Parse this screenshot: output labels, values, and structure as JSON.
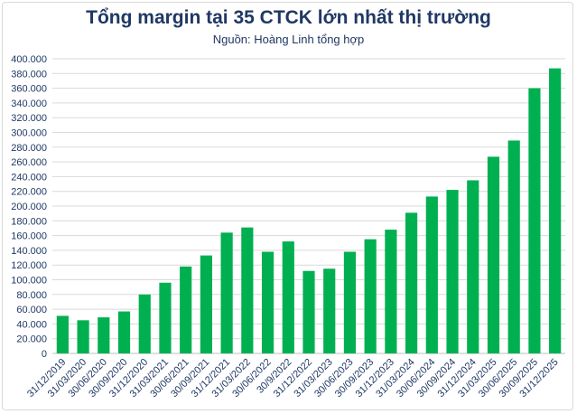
{
  "chart_data": {
    "type": "bar",
    "title": "Tổng margin tại 35 CTCK lớn nhất thị trường",
    "subtitle": "Nguồn: Hoàng Linh tổng hợp",
    "xlabel": "",
    "ylabel": "",
    "ylim": [
      0,
      400000
    ],
    "yticks": [
      "0",
      "20.000",
      "40.000",
      "60.000",
      "80.000",
      "100.000",
      "120.000",
      "140.000",
      "160.000",
      "180.000",
      "200.000",
      "220.000",
      "240.000",
      "260.000",
      "280.000",
      "300.000",
      "320.000",
      "340.000",
      "360.000",
      "380.000",
      "400.000"
    ],
    "categories": [
      "31/12/2019",
      "31/03/2020",
      "30/06/2020",
      "30/09/2020",
      "31/12/2020",
      "31/03/2021",
      "30/06/2021",
      "30/09/2021",
      "31/12/2021",
      "31/03/2022",
      "30/06/2022",
      "30/9/2022",
      "31/12/2022",
      "31/03/2023",
      "30/06/2023",
      "30/09/2023",
      "31/12/2023",
      "31/03/2024",
      "30/06/2024",
      "30/09/2024",
      "31/12/2024",
      "31/03/2025",
      "30/06/2025",
      "30/09/2025",
      "31/12/2025"
    ],
    "values": [
      51000,
      45000,
      49000,
      57000,
      80000,
      96000,
      118000,
      133000,
      164000,
      171000,
      138000,
      152000,
      112000,
      115000,
      138000,
      155000,
      168000,
      191000,
      213000,
      222000,
      235000,
      267000,
      289000,
      360000,
      387000
    ],
    "grid": true,
    "legend": "none",
    "colors": {
      "bar": "#00b050",
      "title": "#1f3864",
      "grid": "#d9d9d9"
    }
  }
}
